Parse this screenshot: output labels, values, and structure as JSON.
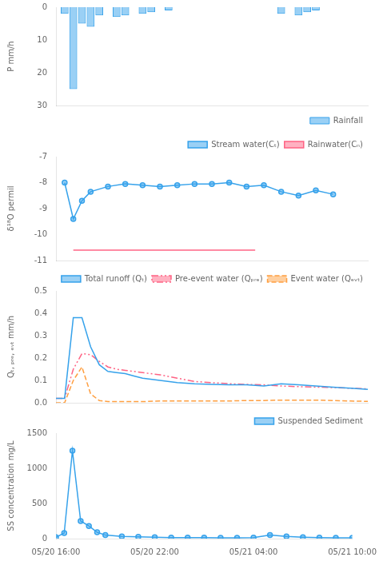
{
  "chart_data": [
    {
      "type": "bar",
      "x": [
        1,
        2,
        3,
        4,
        5,
        7,
        8,
        10,
        11,
        13,
        26,
        28,
        29,
        30
      ],
      "series": [
        {
          "name": "Rainfall",
          "values": [
            2.0,
            25.0,
            5.0,
            6.0,
            2.5,
            3.0,
            2.5,
            2.0,
            1.5,
            1.0,
            2.0,
            2.5,
            1.5,
            1.0
          ]
        }
      ],
      "xlim": [
        0,
        36
      ],
      "ylim": [
        30,
        0
      ],
      "yticks": [
        0,
        10,
        20,
        30
      ],
      "ylabel": "P mm/h",
      "tick_labels": "y",
      "grid": false,
      "legend": "lower right"
    },
    {
      "type": "line",
      "series": [
        {
          "name": "Stream water(Cₜ)",
          "marker": "circle",
          "line_style": "solid",
          "x": [
            1,
            2,
            3,
            4,
            6,
            8,
            10,
            12,
            14,
            16,
            18,
            20,
            22,
            24,
            26,
            28,
            30,
            32
          ],
          "values": [
            -8.0,
            -9.4,
            -8.7,
            -8.35,
            -8.15,
            -8.05,
            -8.1,
            -8.15,
            -8.1,
            -8.05,
            -8.05,
            -8.0,
            -8.15,
            -8.1,
            -8.35,
            -8.5,
            -8.3,
            -8.45
          ]
        },
        {
          "name": "Rainwater(Cₙ)",
          "marker": "none",
          "line_style": "solid",
          "x": [
            2,
            23
          ],
          "values": [
            -10.6,
            -10.6
          ]
        }
      ],
      "xlim": [
        0,
        36
      ],
      "ylim": [
        -11,
        -7
      ],
      "yticks": [
        -7,
        -8,
        -9,
        -10,
        -11
      ],
      "ylabel": "δ¹⁸O permil",
      "tick_labels": "y",
      "grid": false,
      "legend": "upper right"
    },
    {
      "type": "line",
      "series": [
        {
          "name": "Total runoff (Qₜ)",
          "marker": "none",
          "line_style": "solid",
          "x": [
            0,
            1,
            2,
            3,
            4,
            5,
            6,
            7,
            8,
            9,
            10,
            12,
            14,
            16,
            18,
            20,
            22,
            24,
            26,
            28,
            30,
            32,
            34,
            36
          ],
          "values": [
            0.02,
            0.02,
            0.38,
            0.38,
            0.25,
            0.17,
            0.14,
            0.135,
            0.13,
            0.12,
            0.11,
            0.1,
            0.09,
            0.085,
            0.082,
            0.08,
            0.08,
            0.075,
            0.085,
            0.08,
            0.075,
            0.07,
            0.065,
            0.06
          ]
        },
        {
          "name": "Pre-event water (Qₚᵣₑ)",
          "marker": "none",
          "line_style": "dashdot",
          "x": [
            0,
            1,
            2,
            3,
            4,
            5,
            6,
            7,
            8,
            9,
            10,
            12,
            14,
            16,
            18,
            20,
            22,
            24,
            26,
            28,
            30,
            32,
            34,
            36
          ],
          "values": [
            0.02,
            0.02,
            0.15,
            0.22,
            0.215,
            0.185,
            0.16,
            0.15,
            0.145,
            0.14,
            0.135,
            0.125,
            0.11,
            0.095,
            0.09,
            0.085,
            0.082,
            0.08,
            0.075,
            0.072,
            0.07,
            0.068,
            0.065,
            0.062
          ]
        },
        {
          "name": "Event water (Qₑᵥₜ)",
          "marker": "none",
          "line_style": "dashed",
          "x": [
            0,
            1,
            2,
            3,
            4,
            5,
            6,
            7,
            8,
            9,
            10,
            12,
            14,
            16,
            18,
            20,
            22,
            24,
            26,
            28,
            30,
            32,
            34,
            36
          ],
          "values": [
            0.0,
            0.0,
            0.1,
            0.16,
            0.04,
            0.01,
            0.005,
            0.005,
            0.005,
            0.005,
            0.005,
            0.008,
            0.008,
            0.008,
            0.008,
            0.008,
            0.01,
            0.01,
            0.012,
            0.012,
            0.012,
            0.01,
            0.008,
            0.006
          ]
        }
      ],
      "xlim": [
        0,
        36
      ],
      "ylim": [
        0,
        0.5
      ],
      "yticks": [
        {
          "value": 0,
          "label": "0.0"
        },
        0.1,
        0.2,
        0.3,
        0.4,
        0.5
      ],
      "ylabel": "Qₜ, ₚᵣₑ, ₑᵥₜ mm/h",
      "tick_labels": "y",
      "grid": false,
      "legend": "upper right"
    },
    {
      "type": "line",
      "x": [
        0,
        1,
        2,
        3,
        4,
        5,
        6,
        8,
        10,
        12,
        14,
        16,
        18,
        20,
        22,
        24,
        26,
        28,
        30,
        32,
        34,
        36
      ],
      "series": [
        {
          "name": "Suspended Sediment",
          "marker": "circle",
          "line_style": "solid",
          "values": [
            20,
            80,
            1250,
            250,
            180,
            90,
            50,
            30,
            25,
            20,
            15,
            15,
            15,
            12,
            12,
            15,
            50,
            30,
            20,
            15,
            12,
            10
          ]
        }
      ],
      "xlim": [
        0,
        36
      ],
      "xticks": [
        {
          "value": 0,
          "label": "05/20 16:00"
        },
        {
          "value": 6,
          "label": null
        },
        {
          "value": 12,
          "label": "05/20 22:00"
        },
        {
          "value": 18,
          "label": null
        },
        {
          "value": 24,
          "label": "05/21 04:00"
        },
        {
          "value": 30,
          "label": null
        },
        {
          "value": 36,
          "label": "05/21 10:00"
        }
      ],
      "ylim": [
        0,
        1500
      ],
      "yticks": [
        0,
        500,
        1000,
        1500
      ],
      "ylabel": "SS concentration mg/L",
      "grid": false,
      "legend": "upper right"
    }
  ]
}
